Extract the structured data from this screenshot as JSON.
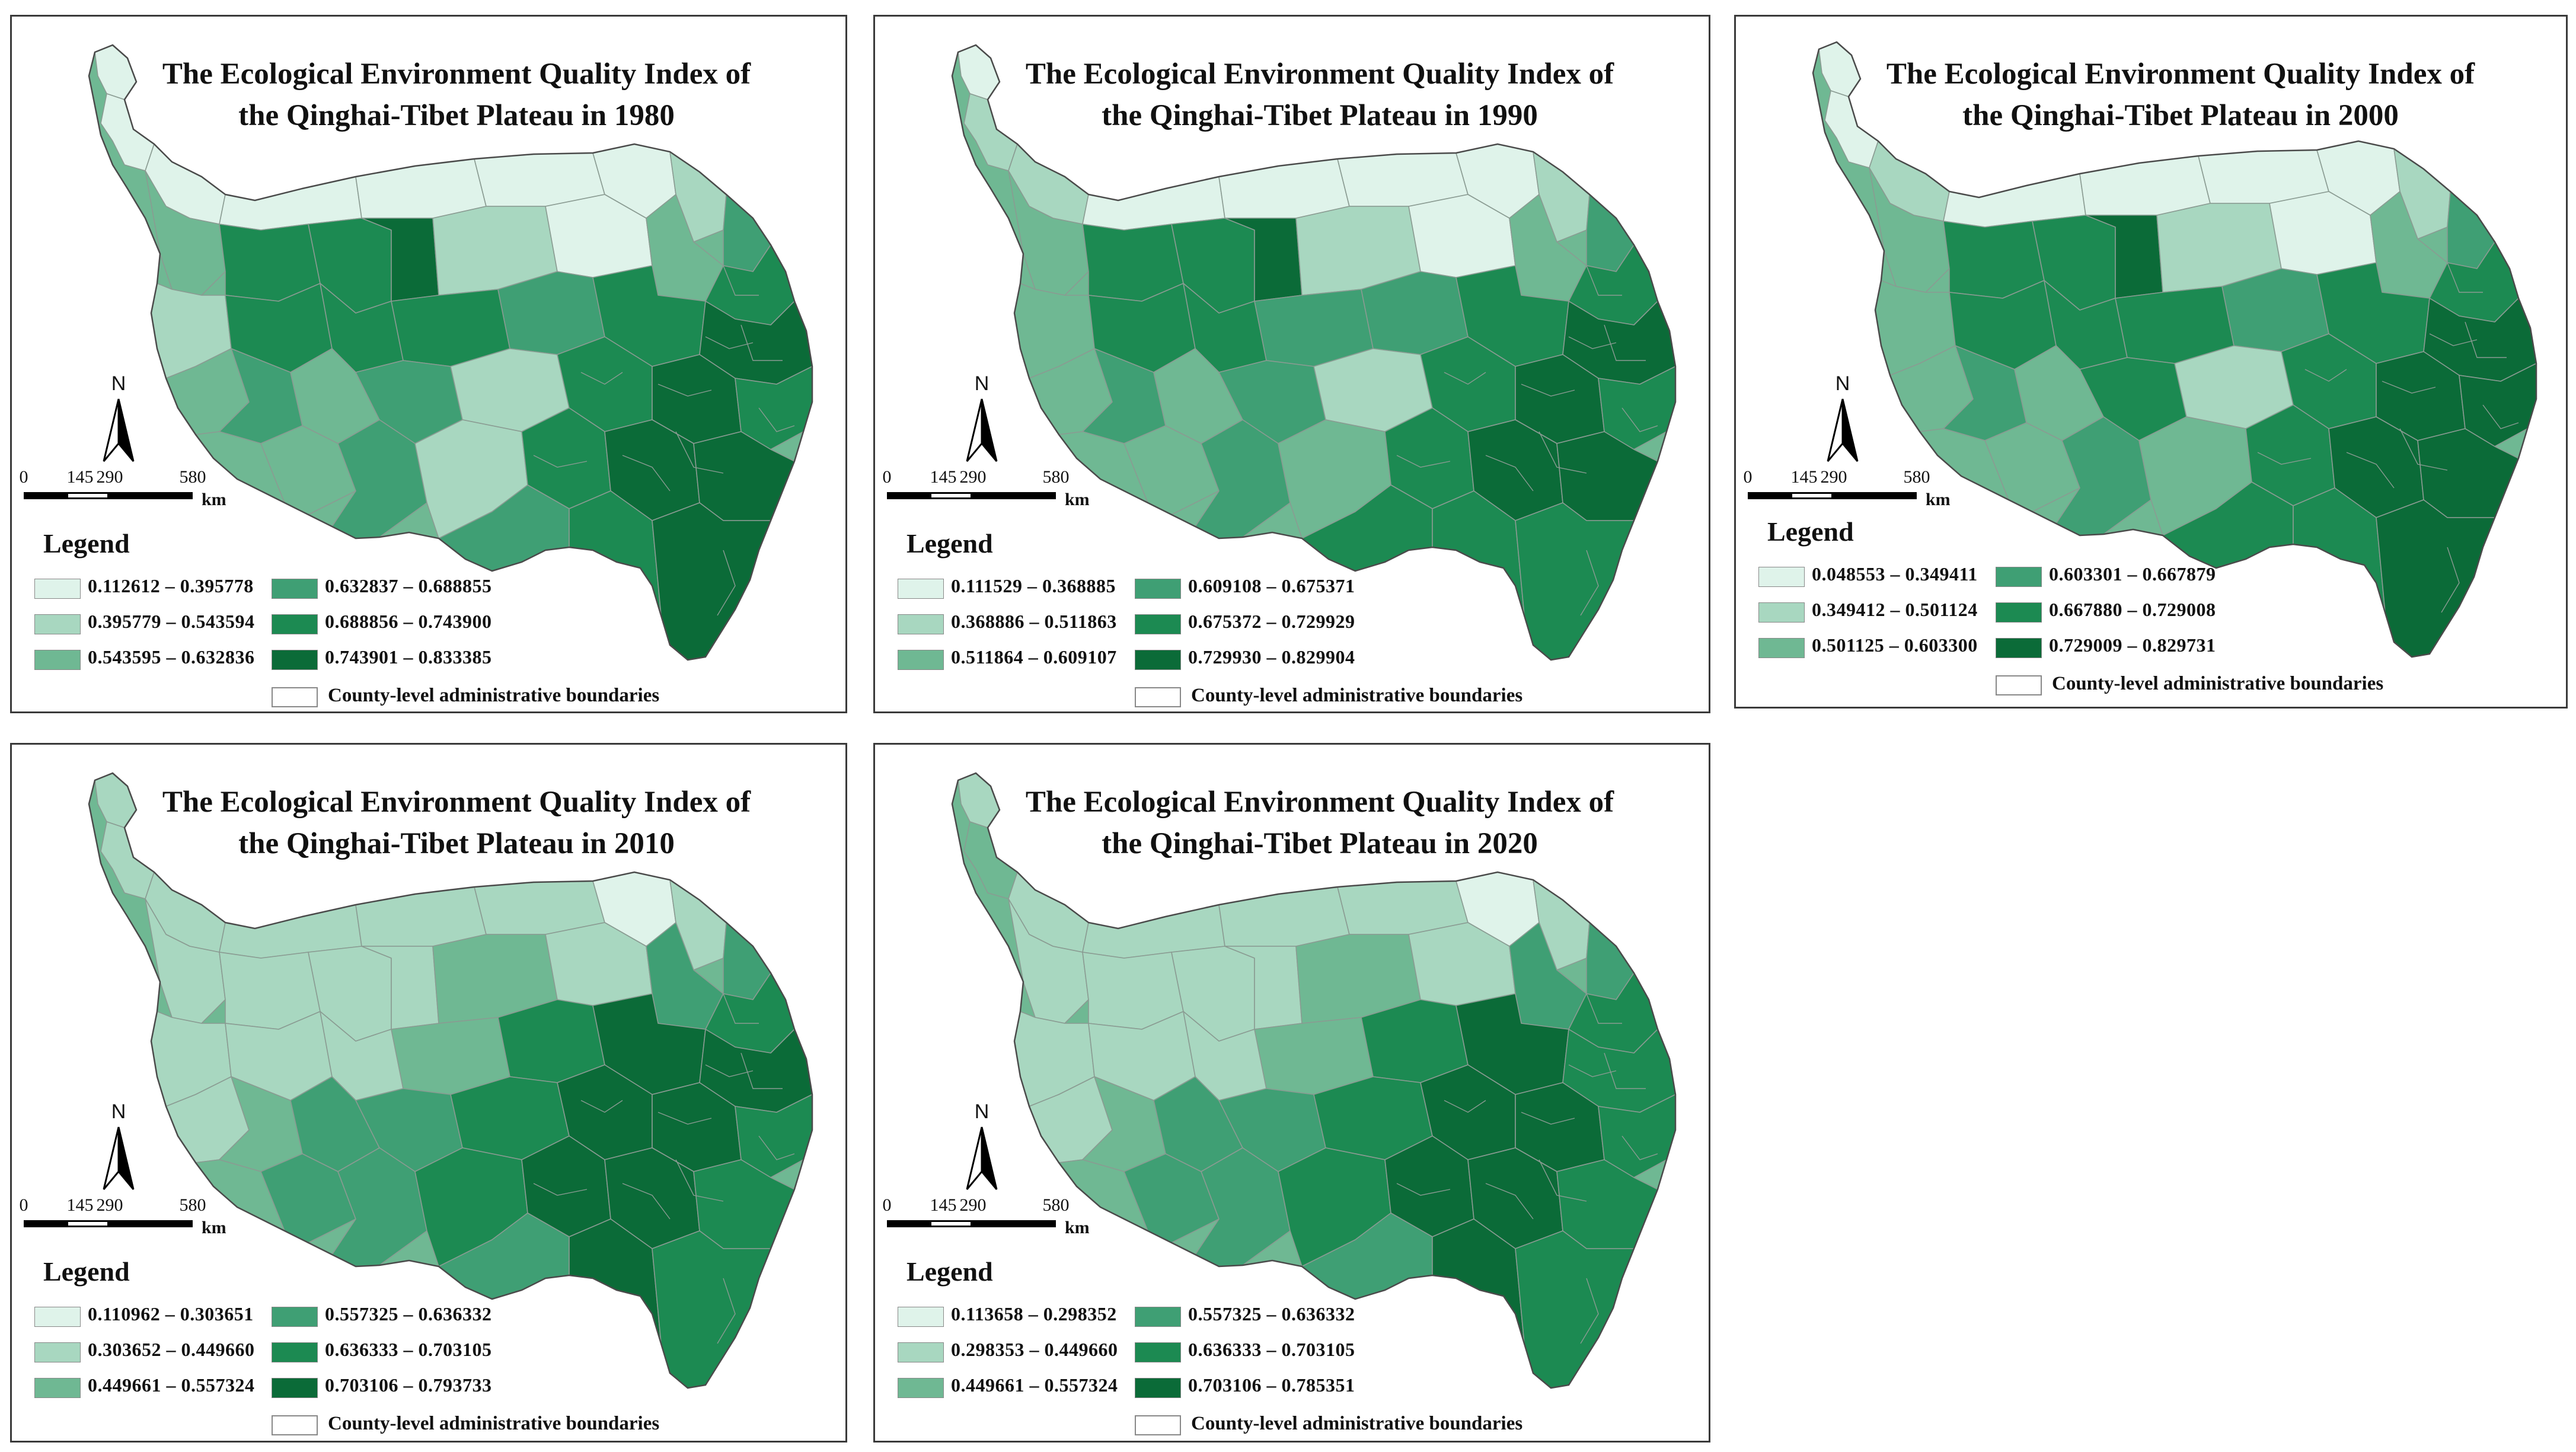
{
  "colors": {
    "class1": "#dff3ea",
    "class2": "#a8d7c0",
    "class3": "#6fb893",
    "class4": "#3f9f74",
    "class5": "#1c8a52",
    "class6": "#0b6b38",
    "border": "#4a4a4a",
    "county_line": "#8a9b92"
  },
  "common": {
    "north_label": "N",
    "scale_ticks": [
      "0",
      "145",
      "290",
      "580"
    ],
    "scale_unit": "km",
    "legend_title": "Legend",
    "boundary_label": "County-level administrative boundaries"
  },
  "panels": [
    {
      "year": "1980",
      "title_line1": "The Ecological Environment Quality Index of",
      "title_line2": "the Qinghai-Tibet Plateau in 1980",
      "classes": [
        "0.112612 – 0.395778",
        "0.395779 – 0.543594",
        "0.543595 – 0.632836",
        "0.632837 – 0.688855",
        "0.688856 – 0.743900",
        "0.743901 – 0.833385"
      ]
    },
    {
      "year": "1990",
      "title_line1": "The Ecological Environment Quality Index of",
      "title_line2": "the Qinghai-Tibet Plateau in 1990",
      "classes": [
        "0.111529 – 0.368885",
        "0.368886 – 0.511863",
        "0.511864 – 0.609107",
        "0.609108 – 0.675371",
        "0.675372 – 0.729929",
        "0.729930 – 0.829904"
      ]
    },
    {
      "year": "2000",
      "title_line1": "The Ecological Environment Quality Index of",
      "title_line2": "the Qinghai-Tibet Plateau in 2000",
      "classes": [
        "0.048553 – 0.349411",
        "0.349412 – 0.501124",
        "0.501125 – 0.603300",
        "0.603301 – 0.667879",
        "0.667880 – 0.729008",
        "0.729009 – 0.829731"
      ]
    },
    {
      "year": "2010",
      "title_line1": "The Ecological Environment Quality Index of",
      "title_line2": "the Qinghai-Tibet Plateau in 2010",
      "classes": [
        "0.110962 – 0.303651",
        "0.303652 – 0.449660",
        "0.449661 – 0.557324",
        "0.557325 – 0.636332",
        "0.636333 – 0.703105",
        "0.703106 – 0.793733"
      ]
    },
    {
      "year": "2020",
      "title_line1": "The Ecological Environment Quality Index of",
      "title_line2": "the Qinghai-Tibet Plateau in 2020",
      "classes": [
        "0.113658 – 0.298352",
        "0.298353 – 0.449660",
        "0.449661 – 0.557324",
        "0.557325 – 0.636332",
        "0.636333 – 0.703105",
        "0.703106 – 0.785351"
      ]
    }
  ]
}
